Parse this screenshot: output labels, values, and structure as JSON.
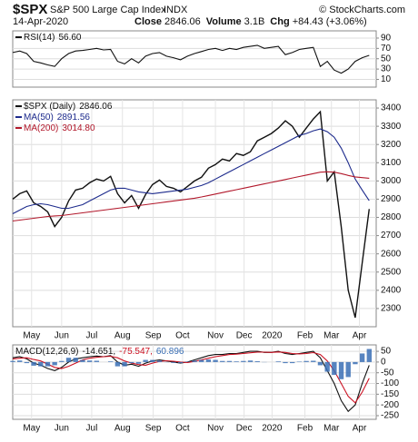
{
  "header": {
    "symbol": "$SPX",
    "name": "S&P 500 Large Cap Index",
    "exchange": "INDX",
    "credit": "© StockCharts.com",
    "date": "14-Apr-2020",
    "quote": [
      {
        "label": "Close",
        "value": "2846.06"
      },
      {
        "label": "Volume",
        "value": "3.1B"
      },
      {
        "label": "Chg",
        "value": "+84.43 (+3.06%)"
      }
    ]
  },
  "chart_data": [
    {
      "type": "line",
      "xlim": [
        0,
        52
      ],
      "ylim": [
        -5,
        104
      ],
      "yticks": [
        90,
        70,
        50,
        30,
        10
      ],
      "grid": true,
      "series": [
        {
          "name": "RSI(14)",
          "legend_value": "56.60",
          "color": "#111111",
          "values": [
            62,
            65,
            60,
            45,
            42,
            38,
            35,
            50,
            60,
            65,
            66,
            68,
            70,
            67,
            68,
            45,
            40,
            50,
            42,
            55,
            60,
            62,
            55,
            52,
            48,
            55,
            60,
            64,
            68,
            70,
            66,
            70,
            68,
            72,
            74,
            76,
            70,
            72,
            74,
            58,
            62,
            68,
            70,
            72,
            35,
            45,
            28,
            22,
            30,
            45,
            52,
            56.6
          ]
        }
      ]
    },
    {
      "type": "line",
      "xlim": [
        0,
        52
      ],
      "ylim": [
        2200,
        3445
      ],
      "yticks": [
        3400,
        3300,
        3200,
        3100,
        3000,
        2900,
        2800,
        2700,
        2600,
        2500,
        2400,
        2300
      ],
      "grid": true,
      "xticks": [
        {
          "value": 2.7,
          "label": "May"
        },
        {
          "value": 7,
          "label": "Jun"
        },
        {
          "value": 11.3,
          "label": "Jul"
        },
        {
          "value": 15.7,
          "label": "Aug"
        },
        {
          "value": 20.1,
          "label": "Sep"
        },
        {
          "value": 24.3,
          "label": "Oct"
        },
        {
          "value": 29,
          "label": "Nov"
        },
        {
          "value": 33.1,
          "label": "Dec"
        },
        {
          "value": 37.1,
          "label": "2020"
        },
        {
          "value": 41.8,
          "label": "Feb"
        },
        {
          "value": 45.6,
          "label": "Mar"
        },
        {
          "value": 49.6,
          "label": "Apr"
        }
      ],
      "series": [
        {
          "name": "$SPX (Daily)",
          "legend_value": "2846.06",
          "color": "#111111",
          "values": [
            2900,
            2930,
            2945,
            2880,
            2860,
            2830,
            2750,
            2800,
            2890,
            2950,
            2960,
            2990,
            3010,
            3000,
            3025,
            2930,
            2880,
            2920,
            2850,
            2925,
            2980,
            3005,
            2970,
            2960,
            2940,
            2970,
            3000,
            3020,
            3070,
            3090,
            3120,
            3110,
            3150,
            3140,
            3160,
            3220,
            3240,
            3260,
            3290,
            3330,
            3300,
            3240,
            3290,
            3340,
            3380,
            3000,
            3050,
            2750,
            2400,
            2250,
            2550,
            2846.06
          ]
        },
        {
          "name": "MA(50)",
          "legend_value": "2891.56",
          "color": "#1c2a8c",
          "values": [
            2820,
            2840,
            2860,
            2870,
            2875,
            2870,
            2860,
            2850,
            2850,
            2860,
            2870,
            2890,
            2910,
            2930,
            2950,
            2960,
            2960,
            2950,
            2940,
            2935,
            2930,
            2935,
            2940,
            2945,
            2950,
            2955,
            2965,
            2975,
            2990,
            3010,
            3030,
            3050,
            3070,
            3090,
            3110,
            3130,
            3150,
            3170,
            3190,
            3210,
            3230,
            3250,
            3260,
            3275,
            3285,
            3270,
            3240,
            3180,
            3100,
            3010,
            2950,
            2891.56
          ]
        },
        {
          "name": "MA(200)",
          "legend_value": "3014.80",
          "color": "#b2182b",
          "values": [
            2780,
            2785,
            2790,
            2795,
            2800,
            2805,
            2808,
            2810,
            2815,
            2820,
            2825,
            2830,
            2835,
            2840,
            2845,
            2850,
            2855,
            2860,
            2865,
            2870,
            2875,
            2880,
            2885,
            2890,
            2895,
            2900,
            2905,
            2912,
            2920,
            2928,
            2936,
            2944,
            2952,
            2960,
            2968,
            2976,
            2984,
            2992,
            3000,
            3008,
            3016,
            3024,
            3032,
            3040,
            3048,
            3050,
            3048,
            3040,
            3030,
            3022,
            3018,
            3014.8
          ]
        }
      ]
    },
    {
      "type": "line",
      "xlim": [
        0,
        52
      ],
      "ylim": [
        -267,
        80
      ],
      "yticks": [
        50,
        0,
        -50,
        -100,
        -150,
        -200,
        -250
      ],
      "grid": true,
      "xticks": [
        {
          "value": 2.7,
          "label": "May"
        },
        {
          "value": 7,
          "label": "Jun"
        },
        {
          "value": 11.3,
          "label": "Jul"
        },
        {
          "value": 15.7,
          "label": "Aug"
        },
        {
          "value": 20.1,
          "label": "Sep"
        },
        {
          "value": 24.3,
          "label": "Oct"
        },
        {
          "value": 29,
          "label": "Nov"
        },
        {
          "value": 33.1,
          "label": "Dec"
        },
        {
          "value": 37.1,
          "label": "2020"
        },
        {
          "value": 41.8,
          "label": "Feb"
        },
        {
          "value": 45.6,
          "label": "Mar"
        },
        {
          "value": 49.6,
          "label": "Apr"
        }
      ],
      "legend_title": "MACD(12,26,9)",
      "series": [
        {
          "name": "MACD",
          "legend_value": "-14.651,",
          "color": "#111111",
          "values": [
            20,
            25,
            15,
            -5,
            -15,
            -30,
            -40,
            -25,
            0,
            15,
            20,
            25,
            28,
            25,
            30,
            0,
            -15,
            -10,
            -20,
            -5,
            5,
            10,
            5,
            0,
            -5,
            0,
            10,
            20,
            30,
            35,
            35,
            40,
            40,
            45,
            50,
            50,
            45,
            45,
            50,
            40,
            35,
            40,
            45,
            50,
            20,
            -40,
            -100,
            -180,
            -230,
            -200,
            -100,
            -14.651
          ]
        },
        {
          "name": "Signal",
          "legend_value": "-75.547,",
          "color": "#cc1122",
          "values": [
            15,
            18,
            20,
            12,
            5,
            -10,
            -25,
            -30,
            -20,
            -5,
            10,
            18,
            22,
            25,
            27,
            20,
            5,
            -5,
            -12,
            -15,
            -5,
            3,
            6,
            4,
            0,
            -2,
            3,
            10,
            18,
            25,
            30,
            35,
            37,
            40,
            43,
            46,
            46,
            45,
            47,
            45,
            40,
            38,
            40,
            44,
            35,
            5,
            -40,
            -100,
            -160,
            -190,
            -140,
            -75.547
          ]
        },
        {
          "name": "Histogram",
          "legend_value": "60.896",
          "color": "#3a6fb5",
          "style": "bars",
          "values": [
            5,
            7,
            -5,
            -17,
            -20,
            -20,
            -15,
            5,
            20,
            20,
            10,
            7,
            6,
            0,
            3,
            -20,
            -20,
            -5,
            -8,
            10,
            10,
            7,
            -1,
            -4,
            -5,
            2,
            7,
            10,
            12,
            10,
            5,
            5,
            3,
            5,
            7,
            4,
            -1,
            0,
            3,
            -5,
            -5,
            2,
            5,
            6,
            -15,
            -45,
            -60,
            -80,
            -70,
            -10,
            40,
            60.896
          ]
        }
      ]
    }
  ]
}
